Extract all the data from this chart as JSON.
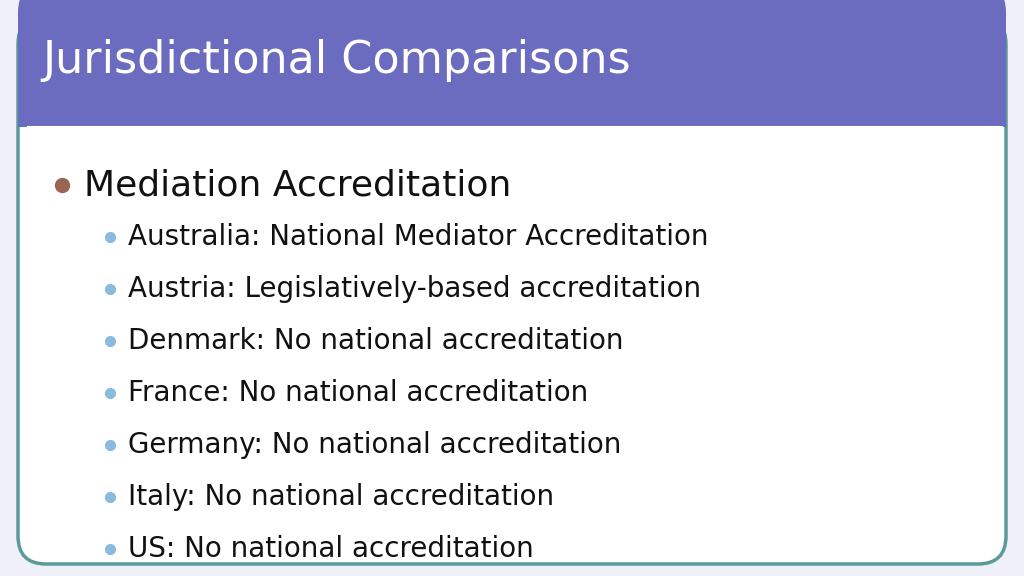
{
  "title": "Jurisdictional Comparisons",
  "title_color": "#ffffff",
  "title_bg_color": "#6b6bbf",
  "header_line_color": "#ffffff",
  "slide_bg_color": "#ffffff",
  "border_color": "#5a9a9a",
  "main_bullet_text": "Mediation Accreditation",
  "main_bullet_color": "#996655",
  "sub_bullet_color": "#88bbdd",
  "sub_bullets": [
    "Australia: National Mediator Accreditation",
    "Austria: Legislatively-based accreditation",
    "Denmark: No national accreditation",
    "France: No national accreditation",
    "Germany: No national accreditation",
    "Italy: No national accreditation",
    "US: No national accreditation"
  ],
  "main_bullet_fontsize": 26,
  "sub_bullet_fontsize": 20,
  "title_fontsize": 32,
  "title_font_weight": "normal",
  "main_bullet_font_weight": "normal",
  "bg_gray": "#f0f0f8"
}
